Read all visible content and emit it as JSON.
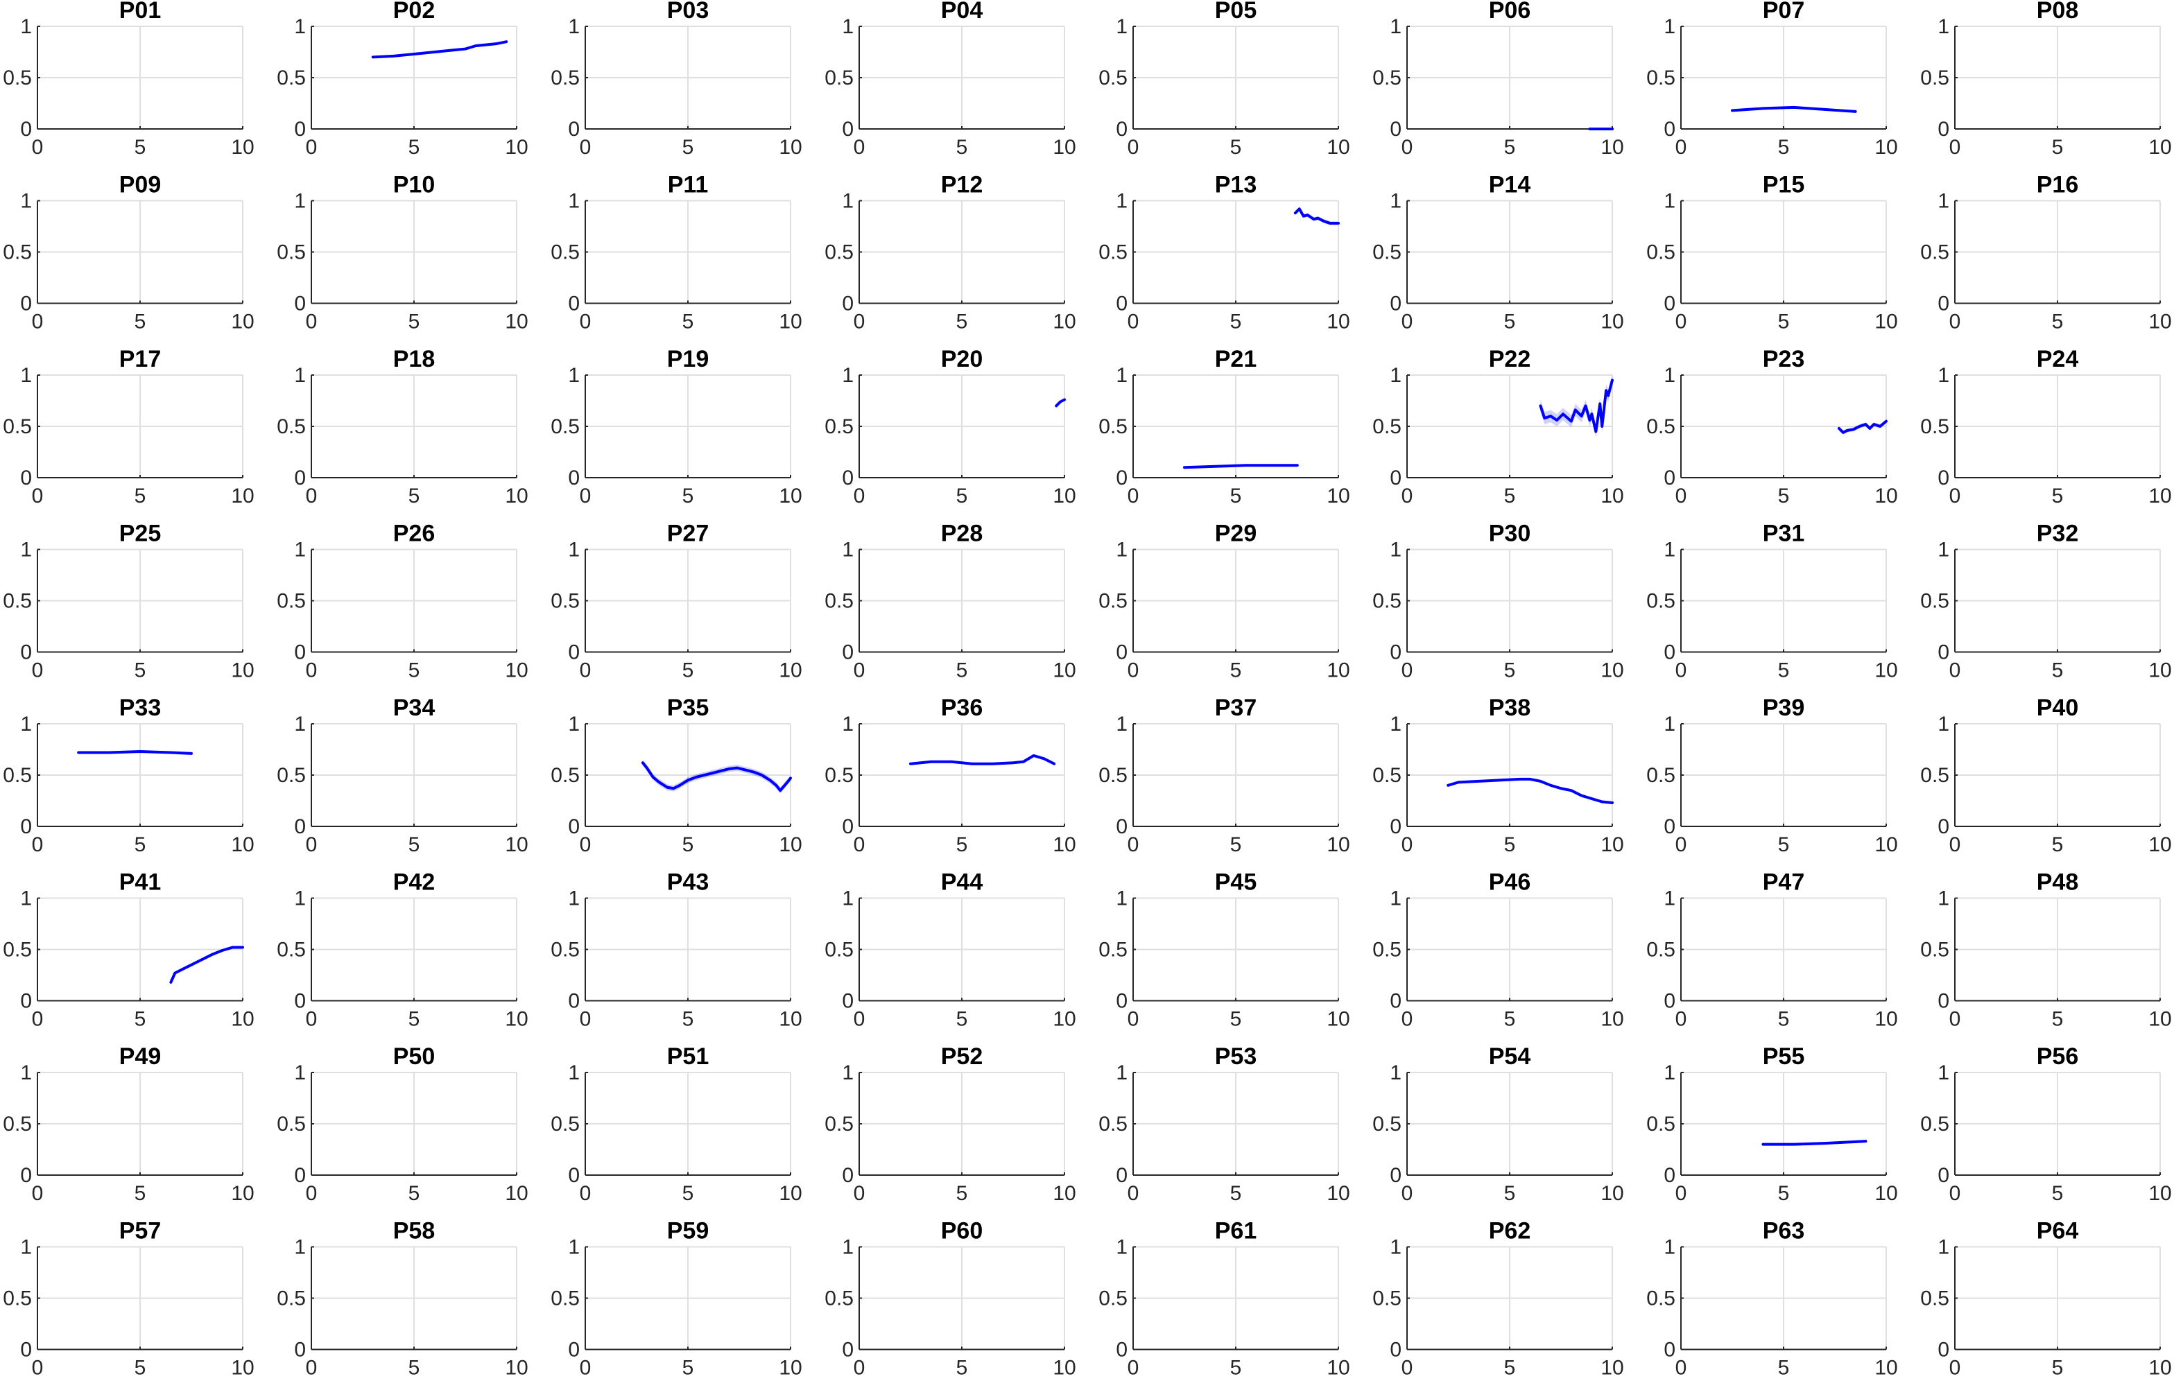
{
  "chart_data": {
    "type": "line",
    "layout": "small-multiples-8x8",
    "xlim": [
      0,
      10
    ],
    "ylim": [
      0,
      1
    ],
    "xticks": [
      0,
      5,
      10
    ],
    "yticks": [
      0,
      0.5,
      1
    ],
    "xtick_labels": [
      "0",
      "5",
      "10"
    ],
    "ytick_labels": [
      "0",
      "0.5",
      "1"
    ],
    "grid": true,
    "line_color": "#0000ff",
    "band_color": "#0000ff",
    "panels": [
      {
        "title": "P01",
        "x": [],
        "y": []
      },
      {
        "title": "P02",
        "x": [
          3.0,
          4.0,
          5.0,
          6.0,
          7.0,
          7.5,
          8.0,
          9.0,
          9.5
        ],
        "y": [
          0.7,
          0.71,
          0.73,
          0.75,
          0.77,
          0.78,
          0.81,
          0.83,
          0.85
        ]
      },
      {
        "title": "P03",
        "x": [],
        "y": []
      },
      {
        "title": "P04",
        "x": [],
        "y": []
      },
      {
        "title": "P05",
        "x": [],
        "y": []
      },
      {
        "title": "P06",
        "x": [
          8.9,
          9.5,
          10.0
        ],
        "y": [
          0.0,
          0.0,
          0.0
        ]
      },
      {
        "title": "P07",
        "x": [
          2.5,
          4.0,
          5.5,
          7.0,
          8.5
        ],
        "y": [
          0.18,
          0.2,
          0.21,
          0.19,
          0.17
        ]
      },
      {
        "title": "P08",
        "x": [],
        "y": []
      },
      {
        "title": "P09",
        "x": [],
        "y": []
      },
      {
        "title": "P10",
        "x": [],
        "y": []
      },
      {
        "title": "P11",
        "x": [],
        "y": []
      },
      {
        "title": "P12",
        "x": [],
        "y": []
      },
      {
        "title": "P13",
        "x": [
          7.9,
          8.1,
          8.3,
          8.5,
          8.8,
          9.0,
          9.3,
          9.6,
          10.0
        ],
        "y": [
          0.88,
          0.92,
          0.85,
          0.86,
          0.82,
          0.83,
          0.8,
          0.78,
          0.78
        ],
        "band": 0.02
      },
      {
        "title": "P14",
        "x": [],
        "y": []
      },
      {
        "title": "P15",
        "x": [],
        "y": []
      },
      {
        "title": "P16",
        "x": [],
        "y": []
      },
      {
        "title": "P17",
        "x": [],
        "y": []
      },
      {
        "title": "P18",
        "x": [],
        "y": []
      },
      {
        "title": "P19",
        "x": [],
        "y": []
      },
      {
        "title": "P20",
        "x": [
          9.6,
          9.8,
          10.0
        ],
        "y": [
          0.7,
          0.74,
          0.76
        ]
      },
      {
        "title": "P21",
        "x": [
          2.5,
          4.0,
          5.5,
          7.0,
          8.0
        ],
        "y": [
          0.1,
          0.11,
          0.12,
          0.12,
          0.12
        ]
      },
      {
        "title": "P22",
        "x": [
          6.5,
          6.7,
          7.0,
          7.3,
          7.6,
          8.0,
          8.2,
          8.5,
          8.7,
          8.9,
          9.0,
          9.2,
          9.4,
          9.5,
          9.7,
          9.8,
          10.0
        ],
        "y": [
          0.7,
          0.58,
          0.6,
          0.56,
          0.62,
          0.55,
          0.66,
          0.6,
          0.7,
          0.56,
          0.62,
          0.45,
          0.72,
          0.5,
          0.85,
          0.8,
          0.95
        ],
        "band": 0.06
      },
      {
        "title": "P23",
        "x": [
          7.7,
          7.9,
          8.1,
          8.4,
          8.7,
          9.0,
          9.2,
          9.4,
          9.7,
          10.0
        ],
        "y": [
          0.48,
          0.44,
          0.46,
          0.47,
          0.5,
          0.52,
          0.48,
          0.52,
          0.5,
          0.55
        ],
        "band": 0.02
      },
      {
        "title": "P24",
        "x": [],
        "y": []
      },
      {
        "title": "P25",
        "x": [],
        "y": []
      },
      {
        "title": "P26",
        "x": [],
        "y": []
      },
      {
        "title": "P27",
        "x": [],
        "y": []
      },
      {
        "title": "P28",
        "x": [],
        "y": []
      },
      {
        "title": "P29",
        "x": [],
        "y": []
      },
      {
        "title": "P30",
        "x": [],
        "y": []
      },
      {
        "title": "P31",
        "x": [],
        "y": []
      },
      {
        "title": "P32",
        "x": [],
        "y": []
      },
      {
        "title": "P33",
        "x": [
          2.0,
          3.5,
          5.0,
          6.5,
          7.5
        ],
        "y": [
          0.72,
          0.72,
          0.73,
          0.72,
          0.71
        ]
      },
      {
        "title": "P34",
        "x": [],
        "y": []
      },
      {
        "title": "P35",
        "x": [
          2.8,
          3.0,
          3.3,
          3.6,
          4.0,
          4.3,
          4.6,
          5.0,
          5.4,
          5.8,
          6.2,
          6.6,
          7.0,
          7.4,
          7.8,
          8.2,
          8.6,
          9.0,
          9.3,
          9.5,
          9.8,
          10.0
        ],
        "y": [
          0.62,
          0.57,
          0.48,
          0.43,
          0.38,
          0.37,
          0.4,
          0.45,
          0.48,
          0.5,
          0.52,
          0.54,
          0.56,
          0.57,
          0.55,
          0.53,
          0.5,
          0.45,
          0.4,
          0.35,
          0.42,
          0.47
        ],
        "band": 0.03
      },
      {
        "title": "P36",
        "x": [
          2.5,
          3.5,
          4.5,
          5.5,
          6.5,
          7.5,
          8.0,
          8.5,
          9.0,
          9.5
        ],
        "y": [
          0.61,
          0.63,
          0.63,
          0.61,
          0.61,
          0.62,
          0.63,
          0.69,
          0.66,
          0.61
        ]
      },
      {
        "title": "P37",
        "x": [],
        "y": []
      },
      {
        "title": "P38",
        "x": [
          2.0,
          2.5,
          3.5,
          4.5,
          5.5,
          6.0,
          6.5,
          7.0,
          7.5,
          8.0,
          8.5,
          9.0,
          9.5,
          10.0
        ],
        "y": [
          0.4,
          0.43,
          0.44,
          0.45,
          0.46,
          0.46,
          0.44,
          0.4,
          0.37,
          0.35,
          0.3,
          0.27,
          0.24,
          0.23
        ]
      },
      {
        "title": "P39",
        "x": [],
        "y": []
      },
      {
        "title": "P40",
        "x": [],
        "y": []
      },
      {
        "title": "P41",
        "x": [
          6.5,
          6.7,
          7.0,
          7.5,
          8.0,
          8.5,
          9.0,
          9.5,
          10.0
        ],
        "y": [
          0.18,
          0.27,
          0.3,
          0.35,
          0.4,
          0.45,
          0.49,
          0.52,
          0.52
        ]
      },
      {
        "title": "P42",
        "x": [],
        "y": []
      },
      {
        "title": "P43",
        "x": [],
        "y": []
      },
      {
        "title": "P44",
        "x": [],
        "y": []
      },
      {
        "title": "P45",
        "x": [],
        "y": []
      },
      {
        "title": "P46",
        "x": [],
        "y": []
      },
      {
        "title": "P47",
        "x": [],
        "y": []
      },
      {
        "title": "P48",
        "x": [],
        "y": []
      },
      {
        "title": "P49",
        "x": [],
        "y": []
      },
      {
        "title": "P50",
        "x": [],
        "y": []
      },
      {
        "title": "P51",
        "x": [],
        "y": []
      },
      {
        "title": "P52",
        "x": [],
        "y": []
      },
      {
        "title": "P53",
        "x": [],
        "y": []
      },
      {
        "title": "P54",
        "x": [],
        "y": []
      },
      {
        "title": "P55",
        "x": [
          4.0,
          5.5,
          7.0,
          8.0,
          9.0
        ],
        "y": [
          0.3,
          0.3,
          0.31,
          0.32,
          0.33
        ]
      },
      {
        "title": "P56",
        "x": [],
        "y": []
      },
      {
        "title": "P57",
        "x": [],
        "y": []
      },
      {
        "title": "P58",
        "x": [],
        "y": []
      },
      {
        "title": "P59",
        "x": [],
        "y": []
      },
      {
        "title": "P60",
        "x": [],
        "y": []
      },
      {
        "title": "P61",
        "x": [],
        "y": []
      },
      {
        "title": "P62",
        "x": [],
        "y": []
      },
      {
        "title": "P63",
        "x": [],
        "y": []
      },
      {
        "title": "P64",
        "x": [],
        "y": []
      }
    ]
  }
}
